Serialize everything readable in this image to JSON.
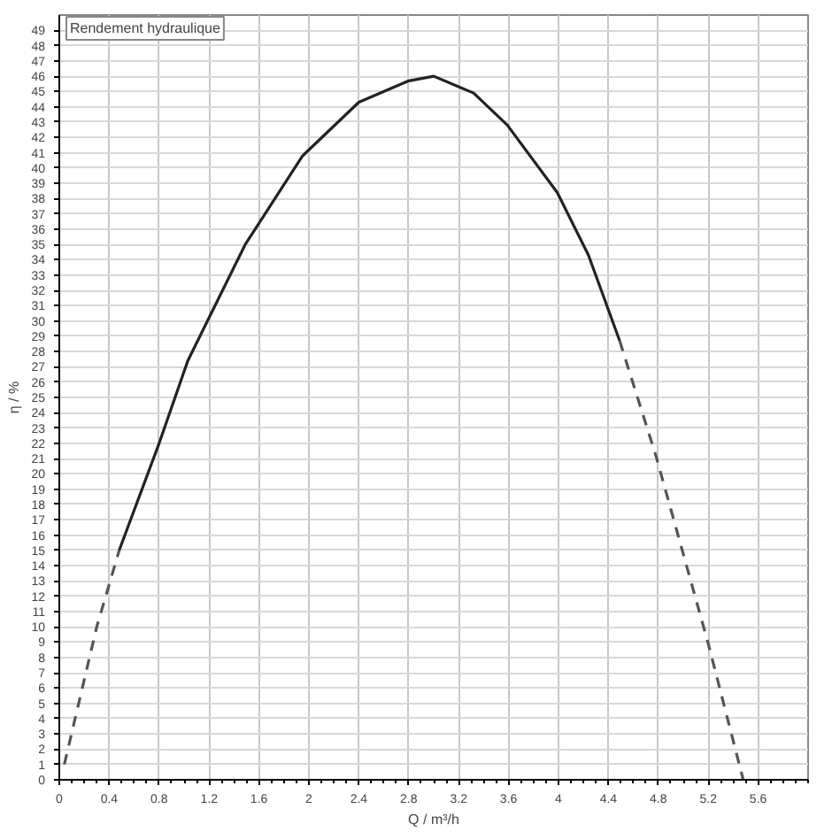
{
  "chart_data": {
    "type": "line",
    "title": "Rendement hydraulique",
    "xlabel": "Q / m³/h",
    "ylabel": "η / %",
    "series": [
      {
        "color": "#555555",
        "line_style": "dashed",
        "x": [
          0.04,
          0.3,
          0.48
        ],
        "values": [
          1,
          10,
          15
        ]
      },
      {
        "color": "#222222",
        "line_style": "solid",
        "x": [
          0.48,
          0.8,
          1.03,
          1.49,
          1.95,
          2.4,
          2.8,
          3.0,
          3.32,
          3.59,
          3.99,
          4.24,
          4.49
        ],
        "values": [
          15,
          22,
          27.4,
          35,
          40.8,
          44.3,
          45.7,
          46,
          44.9,
          42.8,
          38.4,
          34.3,
          28.7
        ]
      },
      {
        "color": "#555555",
        "line_style": "dashed",
        "x": [
          4.49,
          4.78,
          5.2,
          5.48
        ],
        "values": [
          28.7,
          21.2,
          8.9,
          0
        ]
      }
    ],
    "xlim": [
      0,
      6
    ],
    "ylim": [
      0,
      50
    ],
    "xticks": [
      0,
      0.4,
      0.8,
      1.2,
      1.6,
      2,
      2.4,
      2.8,
      3.2,
      3.6,
      4,
      4.4,
      4.8,
      5.2,
      5.6
    ],
    "yticks": [
      0,
      1,
      2,
      3,
      4,
      5,
      6,
      7,
      8,
      9,
      10,
      11,
      12,
      13,
      14,
      15,
      16,
      17,
      18,
      19,
      20,
      21,
      22,
      23,
      24,
      25,
      26,
      27,
      28,
      29,
      30,
      31,
      32,
      33,
      34,
      35,
      36,
      37,
      38,
      39,
      40,
      41,
      42,
      43,
      44,
      45,
      46,
      47,
      48,
      49
    ],
    "grid": true,
    "marker": "none"
  }
}
